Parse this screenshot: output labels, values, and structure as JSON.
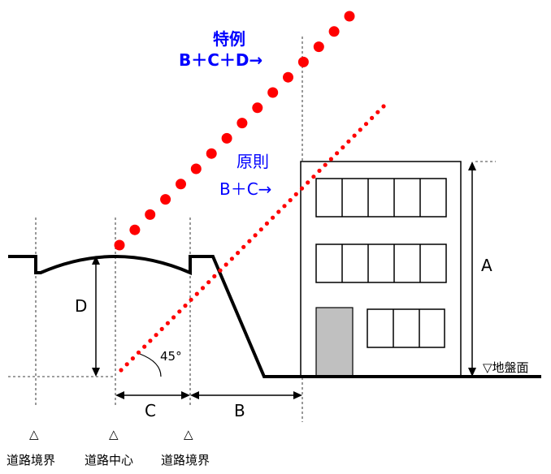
{
  "labels": {
    "tokurei": "特例",
    "tokurei_formula": "B＋C＋D→",
    "gensoku": "原則",
    "gensoku_formula": "B＋C→",
    "A": "A",
    "B": "B",
    "C": "C",
    "D": "D",
    "angle": "45°",
    "ground": "▽地盤面",
    "boundary_left": "道路境界",
    "center": "道路中心",
    "boundary_right": "道路境界",
    "triangle": "△"
  },
  "colors": {
    "line": "#000000",
    "accent_red": "#ff0000",
    "label_blue": "#0000ff",
    "door_gray": "#c0c0c0"
  }
}
